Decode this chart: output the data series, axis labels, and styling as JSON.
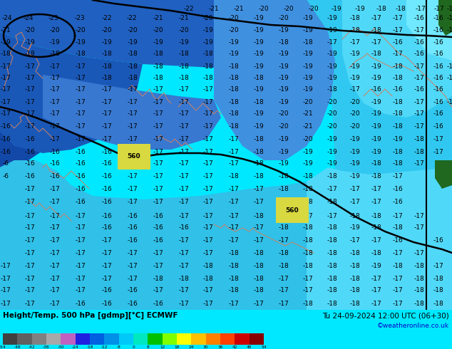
{
  "title_left": "Height/Temp. 500 hPa [gdmp][°C] ECMWF",
  "title_right": "Tu 24-09-2024 12:00 UTC (06+30)",
  "credit": "©weatheronline.co.uk",
  "bg_cyan": "#00e8ff",
  "bg_blue_dark": "#0050b0",
  "bg_blue_mid": "#3080d8",
  "bg_blue_light": "#60b0f0",
  "bg_cyan_mid": "#40d8f8",
  "legend_bg": "#00d0f0",
  "green_patch": "#206820",
  "contour_color": "#000000",
  "coast_color": "#d08060",
  "num_color": "#000000",
  "label_560_color": "#ccaa00",
  "label_560_bg": "#e8e870",
  "credit_color": "#0000cc",
  "cbar_colors": [
    "#404040",
    "#606060",
    "#808080",
    "#a8a8a8",
    "#c060c0",
    "#2020e0",
    "#0060e0",
    "#0090e8",
    "#00c8f8",
    "#00e8c0",
    "#00c000",
    "#80ff00",
    "#ffff00",
    "#ffc000",
    "#ff8000",
    "#ff4000",
    "#cc0000",
    "#880000"
  ],
  "cbar_ticks": [
    -54,
    -48,
    -42,
    -38,
    -30,
    -24,
    -18,
    -12,
    -8,
    0,
    8,
    12,
    18,
    24,
    30,
    36,
    42,
    48,
    54
  ],
  "cbar_labels": [
    "-54",
    "-48",
    "-42",
    "-38",
    "-30",
    "-24",
    "-18",
    "-12",
    "-8",
    "0",
    "8",
    "12",
    "18",
    "24",
    "30",
    "36",
    "42",
    "48",
    "54"
  ]
}
